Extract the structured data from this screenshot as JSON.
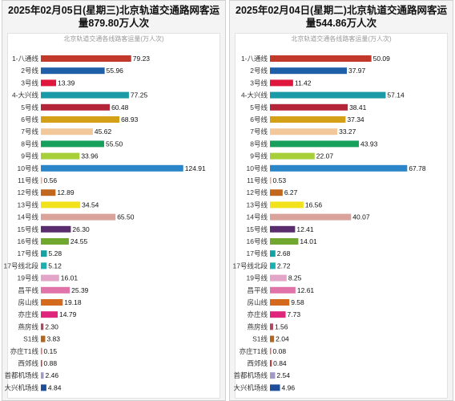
{
  "chart_data": [
    {
      "type": "bar",
      "orientation": "horizontal",
      "title": [
        "2025年02月05日(星期三)北京轨道交通路网客运",
        "量879.80万人次"
      ],
      "subtitle": "北京轨道交通各线路客运量(万人次)",
      "categories": [
        "1-八通线",
        "2号线",
        "3号线",
        "4-大兴线",
        "5号线",
        "6号线",
        "7号线",
        "8号线",
        "9号线",
        "10号线",
        "11号线",
        "12号线",
        "13号线",
        "14号线",
        "15号线",
        "16号线",
        "17号线",
        "17号线北段",
        "19号线",
        "昌平线",
        "房山线",
        "亦庄线",
        "燕房线",
        "S1线",
        "亦庄T1线",
        "西郊线",
        "首都机场线",
        "大兴机场线"
      ],
      "values": [
        79.23,
        55.96,
        13.39,
        77.25,
        60.48,
        68.93,
        45.62,
        55.5,
        33.96,
        124.91,
        0.56,
        12.89,
        34.54,
        65.5,
        26.3,
        24.55,
        5.28,
        5.12,
        16.01,
        25.39,
        19.18,
        14.79,
        2.3,
        3.83,
        0.15,
        0.88,
        2.46,
        4.84
      ],
      "value_labels": [
        "79.23",
        "55.96",
        "13.39",
        "77.25",
        "60.48",
        "68.93",
        "45.62",
        "55.50",
        "33.96",
        "124.91",
        "0.56",
        "12.89",
        "34.54",
        "65.50",
        "26.30",
        "24.55",
        "5.28",
        "5.12",
        "16.01",
        "25.39",
        "19.18",
        "14.79",
        "2.30",
        "3.83",
        "0.15",
        "0.88",
        "2.46",
        "4.84"
      ],
      "xlim": [
        0,
        130
      ]
    },
    {
      "type": "bar",
      "orientation": "horizontal",
      "title": [
        "2025年02月04日(星期二)北京轨道交通路网客运",
        "量544.86万人次"
      ],
      "subtitle": "北京轨道交通各线路客运量(万人次)",
      "categories": [
        "1-八通线",
        "2号线",
        "3号线",
        "4-大兴线",
        "5号线",
        "6号线",
        "7号线",
        "8号线",
        "9号线",
        "10号线",
        "11号线",
        "12号线",
        "13号线",
        "14号线",
        "15号线",
        "16号线",
        "17号线",
        "17号线北段",
        "19号线",
        "昌平线",
        "房山线",
        "亦庄线",
        "燕房线",
        "S1线",
        "亦庄T1线",
        "西郊线",
        "首都机场线",
        "大兴机场线"
      ],
      "values": [
        50.09,
        37.97,
        11.42,
        57.14,
        38.41,
        37.34,
        33.27,
        43.93,
        22.07,
        67.78,
        0.53,
        6.27,
        16.56,
        40.07,
        12.41,
        14.01,
        2.68,
        2.72,
        8.25,
        12.61,
        9.58,
        7.73,
        1.56,
        2.04,
        0.08,
        0.84,
        2.54,
        4.96
      ],
      "value_labels": [
        "50.09",
        "37.97",
        "11.42",
        "57.14",
        "38.41",
        "37.34",
        "33.27",
        "43.93",
        "22.07",
        "67.78",
        "0.53",
        "6.27",
        "16.56",
        "40.07",
        "12.41",
        "14.01",
        "2.68",
        "2.72",
        "8.25",
        "12.61",
        "9.58",
        "7.73",
        "1.56",
        "2.04",
        "0.08",
        "0.84",
        "2.54",
        "4.96"
      ],
      "xlim": [
        0,
        72
      ]
    }
  ],
  "colors": {
    "line_colors": [
      "#c0392b",
      "#1f5fa8",
      "#e0173c",
      "#1a9aa6",
      "#b5253a",
      "#d4a017",
      "#f2c79a",
      "#16a05c",
      "#a7cf3a",
      "#2a86c8",
      "#f4a582",
      "#c2681e",
      "#f2e21c",
      "#d9a39b",
      "#5a2d6e",
      "#6fa72f",
      "#14a3a3",
      "#1bb0b0",
      "#e3a5c7",
      "#e073a8",
      "#d36a1e",
      "#e0267c",
      "#b0475e",
      "#b5651d",
      "#e36a5a",
      "#c23a3a",
      "#a39ac3",
      "#1e4d99"
    ]
  }
}
